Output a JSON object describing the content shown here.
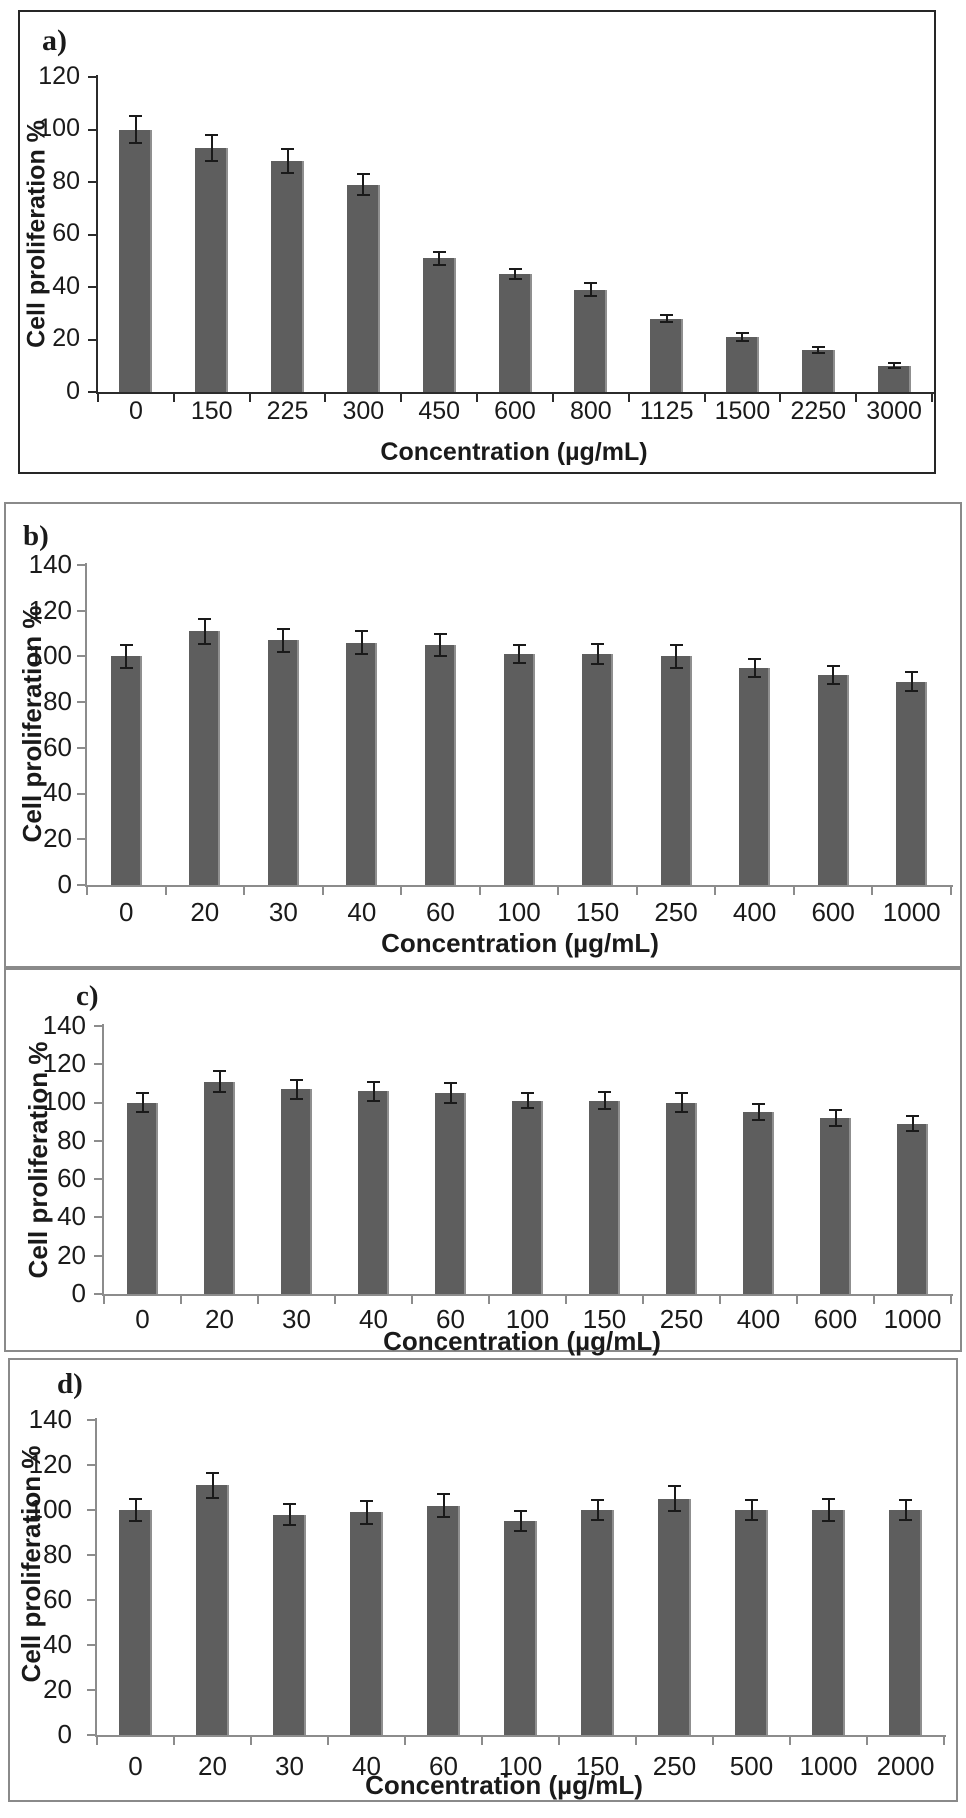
{
  "figure": {
    "bar_color": "#5e5e5e",
    "bar_edge_color": "#8f8f8f",
    "error_color": "#1a1a1a",
    "panel_a_line_color": "#262626",
    "panel_bcd_line_color": "#8a8a8a",
    "text_color": "#1a1a1a"
  },
  "chart_data": [
    {
      "id": "a",
      "type": "bar",
      "letter": "a)",
      "title": "",
      "xlabel": "Concentration (µg/mL)",
      "ylabel": "Cell proliferation %",
      "ylim": [
        0,
        120
      ],
      "yticks": [
        0,
        20,
        40,
        60,
        80,
        100,
        120
      ],
      "categories": [
        "0",
        "150",
        "225",
        "300",
        "450",
        "600",
        "800",
        "1125",
        "1500",
        "2250",
        "3000"
      ],
      "values": [
        100,
        93,
        88,
        79,
        51,
        45,
        39,
        28,
        21,
        16,
        10
      ],
      "errors": [
        5,
        5,
        4.5,
        4,
        2.5,
        2,
        2.5,
        1.5,
        1.5,
        1,
        1
      ],
      "grid": false,
      "legend": null
    },
    {
      "id": "b",
      "type": "bar",
      "letter": "b)",
      "title": "",
      "xlabel": "Concentration (µg/mL)",
      "ylabel": "Cell proliferation %",
      "ylim": [
        0,
        140
      ],
      "yticks": [
        0,
        20,
        40,
        60,
        80,
        100,
        120,
        140
      ],
      "categories": [
        "0",
        "20",
        "30",
        "40",
        "60",
        "100",
        "150",
        "250",
        "400",
        "600",
        "1000"
      ],
      "values": [
        100,
        111,
        107,
        106,
        105,
        101,
        101,
        100,
        95,
        92,
        89
      ],
      "errors": [
        5,
        5.5,
        5,
        5,
        5,
        4,
        4.5,
        5,
        4,
        4,
        4
      ],
      "grid": false,
      "legend": null
    },
    {
      "id": "c",
      "type": "bar",
      "letter": "c)",
      "title": "",
      "xlabel": "Concentration (µg/mL)",
      "ylabel": "Cell proliferation %",
      "ylim": [
        0,
        140
      ],
      "yticks": [
        0,
        20,
        40,
        60,
        80,
        100,
        120,
        140
      ],
      "categories": [
        "0",
        "20",
        "30",
        "40",
        "60",
        "100",
        "150",
        "250",
        "400",
        "600",
        "1000"
      ],
      "values": [
        100,
        111,
        107,
        106,
        105,
        101,
        101,
        100,
        95,
        92,
        89
      ],
      "errors": [
        5,
        5.5,
        5,
        5,
        5,
        4,
        4.5,
        5,
        4,
        4,
        4
      ],
      "grid": false,
      "legend": null
    },
    {
      "id": "d",
      "type": "bar",
      "letter": "d)",
      "title": "",
      "xlabel": "Concentration (µg/mL)",
      "ylabel": "Cell proliferation %",
      "ylim": [
        0,
        140
      ],
      "yticks": [
        0,
        20,
        40,
        60,
        80,
        100,
        120,
        140
      ],
      "categories": [
        "0",
        "20",
        "30",
        "40",
        "60",
        "100",
        "150",
        "250",
        "500",
        "1000",
        "2000"
      ],
      "values": [
        100,
        111,
        98,
        99,
        102,
        95,
        100,
        105,
        100,
        100,
        100
      ],
      "errors": [
        5,
        5.5,
        4.5,
        5,
        5,
        4.5,
        4.5,
        5.5,
        4.5,
        5,
        4.5
      ],
      "grid": false,
      "legend": null
    }
  ]
}
